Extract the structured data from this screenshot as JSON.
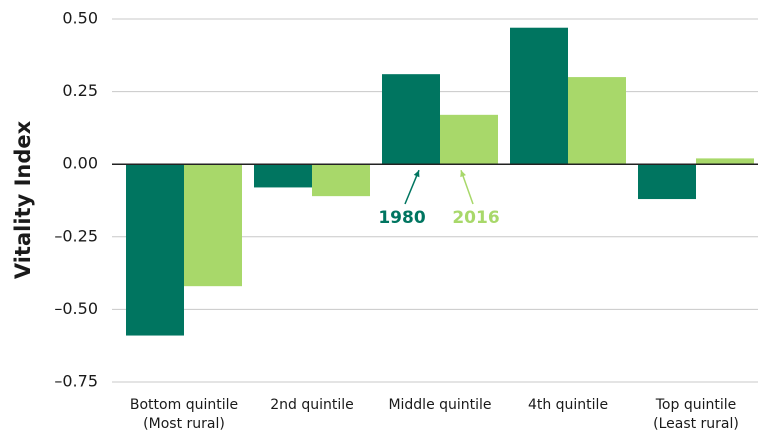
{
  "chart_data": {
    "type": "bar",
    "y_label": "Vitality Index",
    "categories": [
      [
        "Bottom quintile",
        "(Most rural)"
      ],
      [
        "2nd quintile"
      ],
      [
        "Middle quintile"
      ],
      [
        "4th quintile"
      ],
      [
        "Top quintile",
        "(Least rural)"
      ]
    ],
    "series": [
      {
        "name": "1980",
        "color": "#007560",
        "values": [
          -0.59,
          -0.08,
          0.31,
          0.47,
          -0.12
        ]
      },
      {
        "name": "2016",
        "color": "#a8d86a",
        "values": [
          -0.42,
          -0.11,
          0.17,
          0.3,
          0.02
        ]
      }
    ],
    "ylim": [
      -0.75,
      0.5
    ],
    "yticks": [
      {
        "value": 0.5,
        "label": "0.50"
      },
      {
        "value": 0.25,
        "label": "0.25"
      },
      {
        "value": 0,
        "label": "0.00"
      },
      {
        "value": -0.25,
        "label": "–0.25"
      },
      {
        "value": -0.5,
        "label": "–0.50"
      },
      {
        "value": -0.75,
        "label": "–0.75"
      }
    ],
    "grid": true
  }
}
